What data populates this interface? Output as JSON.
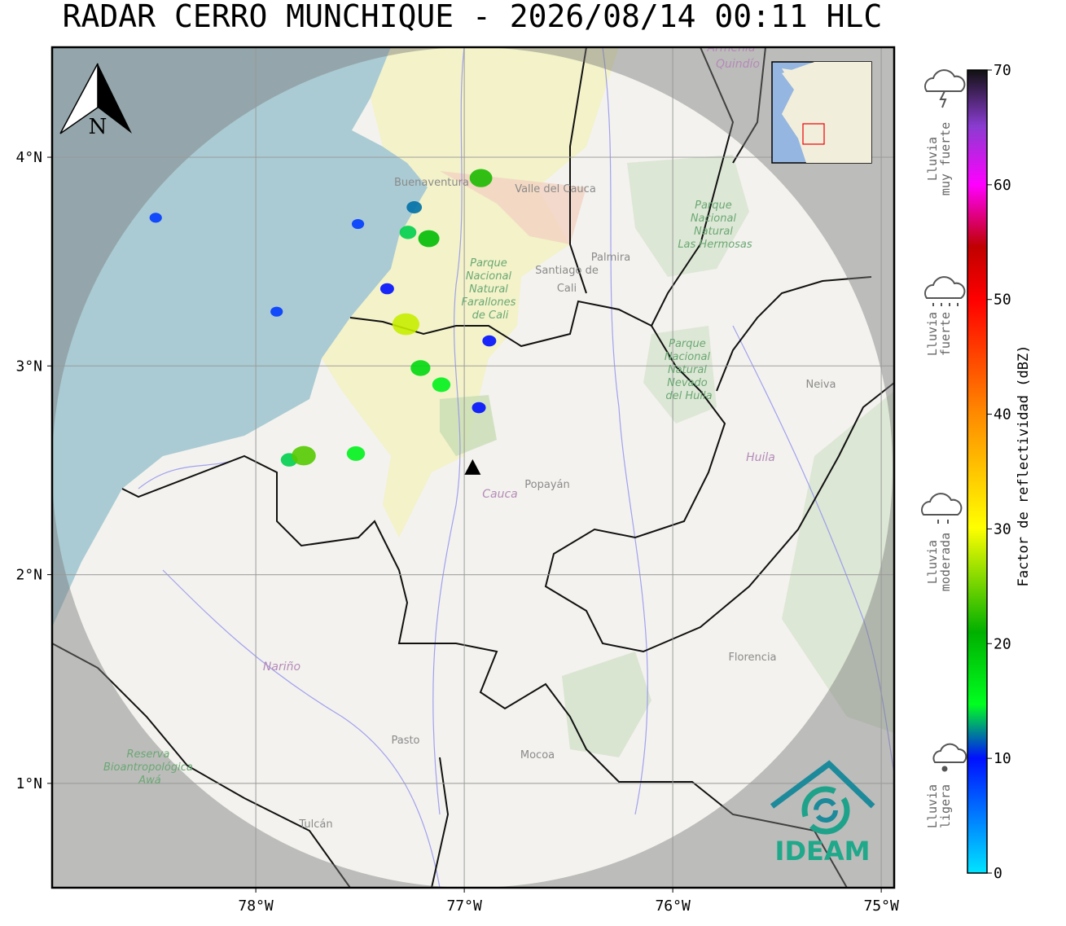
{
  "title": "RADAR CERRO MUNCHIQUE - 2026/08/14 00:11 HLC",
  "north_label": "N",
  "logo": "IDEAM",
  "map": {
    "xlim": [
      -78.977,
      -74.938
    ],
    "ylim": [
      0.5,
      4.527
    ],
    "xticks": [
      {
        "value": -78,
        "label": "78°W"
      },
      {
        "value": -77,
        "label": "77°W"
      },
      {
        "value": -76,
        "label": "76°W"
      },
      {
        "value": -75,
        "label": "75°W"
      }
    ],
    "yticks": [
      {
        "value": 4,
        "label": "4°N"
      },
      {
        "value": 3,
        "label": "3°N"
      },
      {
        "value": 2,
        "label": "2°N"
      },
      {
        "value": 1,
        "label": "1°N"
      }
    ],
    "grid": true,
    "radar": {
      "lon": -76.96,
      "lat": 2.51
    },
    "echoes": [
      {
        "lon": -76.92,
        "lat": 3.9,
        "dbz": 22
      },
      {
        "lon": -77.24,
        "lat": 3.76,
        "dbz": 12
      },
      {
        "lon": -77.27,
        "lat": 3.64,
        "dbz": 14
      },
      {
        "lon": -77.17,
        "lat": 3.61,
        "dbz": 20
      },
      {
        "lon": -77.28,
        "lat": 3.2,
        "dbz": 28
      },
      {
        "lon": -77.11,
        "lat": 2.91,
        "dbz": 16
      },
      {
        "lon": -77.21,
        "lat": 2.99,
        "dbz": 18
      },
      {
        "lon": -76.88,
        "lat": 3.12,
        "dbz": 10
      },
      {
        "lon": -77.84,
        "lat": 2.55,
        "dbz": 14
      },
      {
        "lon": -77.77,
        "lat": 2.57,
        "dbz": 24
      },
      {
        "lon": -77.52,
        "lat": 2.58,
        "dbz": 16
      },
      {
        "lon": -78.48,
        "lat": 3.71,
        "dbz": 8
      },
      {
        "lon": -77.51,
        "lat": 3.68,
        "dbz": 8
      },
      {
        "lon": -77.9,
        "lat": 3.26,
        "dbz": 8
      },
      {
        "lon": -77.37,
        "lat": 3.37,
        "dbz": 10
      },
      {
        "lon": -76.93,
        "lat": 2.8,
        "dbz": 10
      }
    ]
  },
  "places": [
    "Buenaventura",
    "Valle del Cauca",
    "Palmira",
    "Santiago de",
    "Cali",
    "Neiva",
    "Huila",
    "Cauca",
    "Popayán",
    "Nariño",
    "Florencia",
    "Pasto",
    "Mocoa",
    "Tulcán",
    "Armenia",
    "Quindío"
  ],
  "parks": [
    [
      "Parque",
      "Nacional",
      "Natural",
      "Farallones",
      "de Cali"
    ],
    [
      "Parque",
      "Nacional",
      "Natural",
      "Las Hermosas"
    ],
    [
      "Parque",
      "Nacional",
      "Natural",
      "Nevado",
      "del Huila"
    ],
    [
      "Reserva",
      "Bioantropológica",
      "Awá"
    ]
  ],
  "colorbar": {
    "label": "Factor de reflectividad (dBZ)",
    "lim": [
      0,
      70
    ],
    "ticks": [
      0,
      10,
      20,
      30,
      40,
      50,
      60,
      70
    ]
  },
  "rain_categories": [
    [
      "Lluvia",
      "muy fuerte"
    ],
    [
      "Lluvia",
      "fuerte"
    ],
    [
      "Lluvia",
      "moderada"
    ],
    [
      "Lluvia",
      "ligera"
    ]
  ]
}
